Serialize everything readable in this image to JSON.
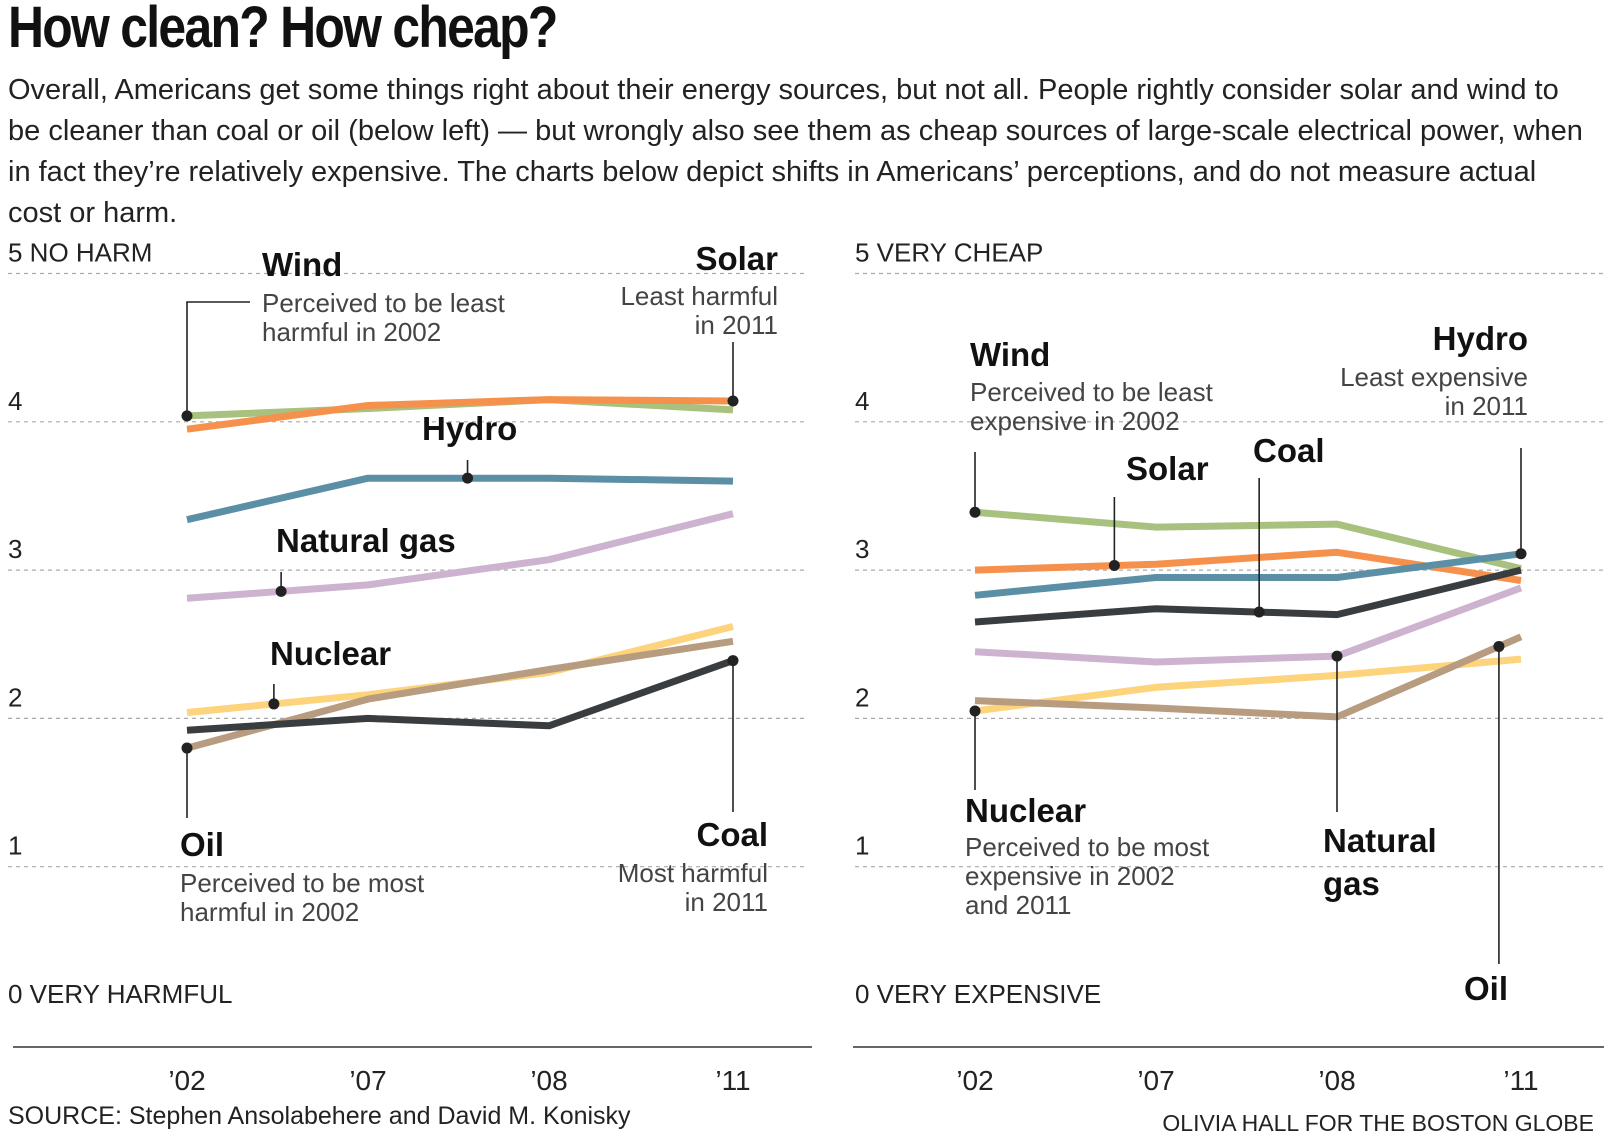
{
  "header": {
    "title": "How clean? How cheap?",
    "intro": "Overall, Americans get some things right about their energy sources, but not all. People rightly consider solar and wind to be cleaner than coal or oil (below left) — but wrongly also see them as cheap sources of large-scale electrical power, when in fact they’re relatively expensive. The charts below depict shifts in Americans’ perceptions, and do not measure actual cost or harm."
  },
  "footer": {
    "source": "SOURCE: Stephen Ansolabehere and David M. Konisky",
    "credit": "OLIVIA HALL FOR THE BOSTON GLOBE"
  },
  "colors": {
    "Wind": "#a8c17e",
    "Solar": "#f5914c",
    "Hydro": "#5a8fa6",
    "Natural gas": "#cdb3cf",
    "Nuclear": "#fdd37c",
    "Oil": "#b79c7f",
    "Coal": "#3a3d3f",
    "grid": "#aaaaaa",
    "axis": "#333333"
  },
  "chart_data": [
    {
      "type": "line",
      "id": "harm",
      "x": [
        "’02",
        "’07",
        "’08",
        "’11"
      ],
      "ylim": [
        0,
        5
      ],
      "ytick_labels": [
        "0 VERY HARMFUL",
        "1",
        "2",
        "3",
        "4",
        "5 NO HARM"
      ],
      "grid": true,
      "series": [
        {
          "name": "Wind",
          "values": [
            4.04,
            4.09,
            4.15,
            4.08
          ]
        },
        {
          "name": "Solar",
          "values": [
            3.95,
            4.11,
            4.15,
            4.14
          ]
        },
        {
          "name": "Hydro",
          "values": [
            3.34,
            3.62,
            3.62,
            3.6
          ]
        },
        {
          "name": "Natural gas",
          "values": [
            2.81,
            2.9,
            3.07,
            3.38
          ]
        },
        {
          "name": "Nuclear",
          "values": [
            2.04,
            2.16,
            2.31,
            2.62
          ]
        },
        {
          "name": "Oil",
          "values": [
            1.8,
            2.13,
            2.33,
            2.52
          ]
        },
        {
          "name": "Coal",
          "values": [
            1.92,
            2.0,
            1.95,
            2.39
          ]
        }
      ],
      "annotations": [
        {
          "series": "Wind",
          "title": "Wind",
          "lines": [
            "Perceived to be least",
            "harmful in 2002"
          ]
        },
        {
          "series": "Solar",
          "title": "Solar",
          "lines": [
            "Least harmful",
            "in 2011"
          ]
        },
        {
          "series": "Hydro",
          "title": "Hydro",
          "lines": []
        },
        {
          "series": "Natural gas",
          "title": "Natural gas",
          "lines": []
        },
        {
          "series": "Nuclear",
          "title": "Nuclear",
          "lines": []
        },
        {
          "series": "Oil",
          "title": "Oil",
          "lines": [
            "Perceived to be most",
            "harmful in 2002"
          ]
        },
        {
          "series": "Coal",
          "title": "Coal",
          "lines": [
            "Most harmful",
            "in 2011"
          ]
        }
      ]
    },
    {
      "type": "line",
      "id": "cost",
      "x": [
        "’02",
        "’07",
        "’08",
        "’11"
      ],
      "ylim": [
        0,
        5
      ],
      "ytick_labels": [
        "0 VERY EXPENSIVE",
        "1",
        "2",
        "3",
        "4",
        "5 VERY CHEAP"
      ],
      "grid": true,
      "series": [
        {
          "name": "Wind",
          "values": [
            3.39,
            3.29,
            3.31,
            3.01
          ]
        },
        {
          "name": "Solar",
          "values": [
            3.0,
            3.04,
            3.12,
            2.93
          ]
        },
        {
          "name": "Hydro",
          "values": [
            2.83,
            2.95,
            2.95,
            3.11
          ]
        },
        {
          "name": "Natural gas",
          "values": [
            2.45,
            2.38,
            2.42,
            2.88
          ]
        },
        {
          "name": "Nuclear",
          "values": [
            2.05,
            2.21,
            2.29,
            2.4
          ]
        },
        {
          "name": "Oil",
          "values": [
            2.12,
            2.07,
            2.01,
            2.55
          ]
        },
        {
          "name": "Coal",
          "values": [
            2.65,
            2.74,
            2.7,
            3.0
          ]
        }
      ],
      "annotations": [
        {
          "series": "Wind",
          "title": "Wind",
          "lines": [
            "Perceived to be least",
            "expensive in 2002"
          ]
        },
        {
          "series": "Hydro",
          "title": "Hydro",
          "lines": [
            "Least expensive",
            "in 2011"
          ]
        },
        {
          "series": "Solar",
          "title": "Solar",
          "lines": []
        },
        {
          "series": "Coal",
          "title": "Coal",
          "lines": []
        },
        {
          "series": "Nuclear",
          "title": "Nuclear",
          "lines": [
            "Perceived to be most",
            "expensive in 2002",
            "and 2011"
          ]
        },
        {
          "series": "Natural gas",
          "title": "Natural gas",
          "lines": []
        },
        {
          "series": "Oil",
          "title": "Oil",
          "lines": []
        }
      ]
    }
  ]
}
